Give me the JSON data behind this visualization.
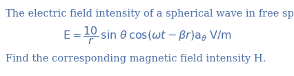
{
  "background_color": "#ffffff",
  "line1": "The electric field intensity of a spherical wave in free space is given by",
  "line1_color": "#4a6fa5",
  "line1_fontsize": 10.5,
  "line3": "Find the corresponding magnetic field intensity H.",
  "line3_color": "#4a6fa5",
  "line3_fontsize": 10.5,
  "eq_color": "#4a6fa5",
  "eq_fontsize": 11.5,
  "fig_width": 4.27,
  "fig_height": 1.1,
  "dpi": 100
}
